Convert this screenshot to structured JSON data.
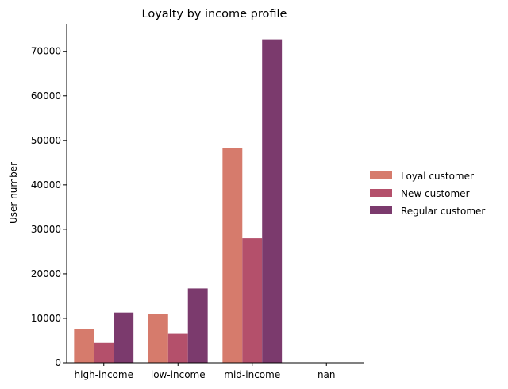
{
  "chart_data": {
    "type": "bar",
    "title": "Loyalty by income profile",
    "xlabel": "",
    "ylabel": "User number",
    "categories": [
      "high-income",
      "low-income",
      "mid-income",
      "nan"
    ],
    "series": [
      {
        "name": "Loyal customer",
        "color": "#d67b6c",
        "values": [
          7600,
          11000,
          48200,
          0
        ]
      },
      {
        "name": "New customer",
        "color": "#b4506b",
        "values": [
          4500,
          6500,
          28000,
          0
        ]
      },
      {
        "name": "Regular customer",
        "color": "#7b3a6d",
        "values": [
          11300,
          16700,
          72700,
          0
        ]
      }
    ],
    "ylim": [
      0,
      76200
    ],
    "yticks": [
      0,
      10000,
      20000,
      30000,
      40000,
      50000,
      60000,
      70000
    ],
    "grid": false,
    "legend_position": "right"
  }
}
